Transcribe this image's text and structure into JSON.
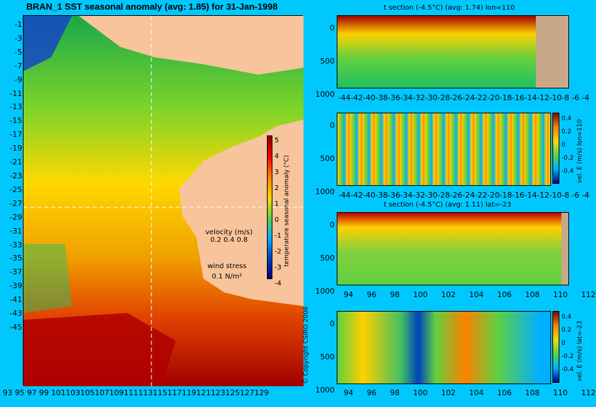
{
  "map": {
    "title": "BRAN_1 SST seasonal anomaly (avg: 1.85) for 31-Jan-1998",
    "lat_ticks": [
      "-1",
      "-3",
      "-5",
      "-7",
      "-9",
      "-11",
      "-13",
      "-15",
      "-17",
      "-19",
      "-21",
      "-23",
      "-25",
      "-27",
      "-29",
      "-31",
      "-33",
      "-35",
      "-37",
      "-39",
      "-41",
      "-43",
      "-45"
    ],
    "lon_ticks": [
      "93",
      "95",
      "97",
      "99",
      "101",
      "103",
      "105",
      "107",
      "109",
      "111",
      "113",
      "115",
      "117",
      "119",
      "121",
      "123",
      "125",
      "127",
      "129"
    ],
    "lon_ticks_text": "93 95 97 99 101103105107109111113115117119121123125127129",
    "colorbar_ticks": [
      "5",
      "4",
      "3",
      "2",
      "1",
      "0",
      "-1",
      "-2",
      "-3",
      "-4"
    ],
    "colorbar_label": "temperature seasonal anomaly (°C)",
    "velocity_label": "velocity (m/s)",
    "velocity_scale": "0.2 0.4 0.8",
    "wind_label": "wind stress",
    "wind_scale": "0.1 N/m²",
    "copyright": "© Copyright CSIRO 2006",
    "colors": {
      "land": "#f7c49b",
      "ocean_bg": "#00c8ff",
      "vector": "#ff00ff"
    }
  },
  "panels": [
    {
      "title": "t section (-4.5°C) (avg: 1.74) lon=110",
      "y_ticks": [
        "0",
        "500",
        "1000"
      ],
      "x_ticks": "-44-42-40-38-36-34-32-30-28-26-24-22-20-18-16-14-12-10-8 -6 -4",
      "side_label": ""
    },
    {
      "title": "",
      "y_ticks": [
        "0",
        "500",
        "1000"
      ],
      "x_ticks": "-44-42-40-38-36-34-32-30-28-26-24-22-20-18-16-14-12-10-8 -6 -4",
      "cbar_ticks": [
        "0.4",
        "0.2",
        "0",
        "-0.2",
        "-0.4"
      ],
      "side_label": "vel. E (m/s) lon=110"
    },
    {
      "title": "t section (-4.5°C) (avg: 1.11) lat=-23",
      "y_ticks": [
        "0",
        "500",
        "1000"
      ],
      "x_ticks": [
        "94",
        "96",
        "98",
        "100",
        "102",
        "104",
        "106",
        "108",
        "110",
        "112"
      ],
      "side_label": ""
    },
    {
      "title": "",
      "y_ticks": [
        "0",
        "500",
        "1000"
      ],
      "x_ticks": [
        "94",
        "96",
        "98",
        "100",
        "102",
        "104",
        "106",
        "108",
        "110",
        "112"
      ],
      "cbar_ticks": [
        "0.4",
        "0.2",
        "0",
        "-0.2",
        "-0.4"
      ],
      "side_label": "vel. E (m/s) lat=-23"
    }
  ]
}
